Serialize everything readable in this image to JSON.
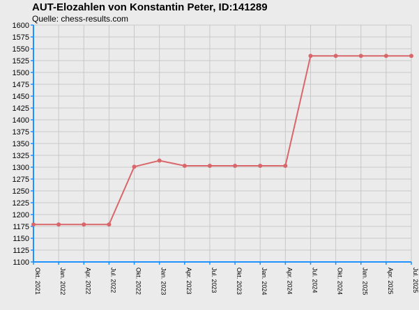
{
  "title": "AUT-Elozahlen von Konstantin Peter, ID:141289",
  "subtitle": "Quelle: chess-results.com",
  "colors": {
    "background": "#ebebeb",
    "grid": "#c8c8c8",
    "axis": "#1e90ff",
    "series": "#d9666a"
  },
  "chart_data": {
    "type": "line",
    "title": "AUT-Elozahlen von Konstantin Peter, ID:141289",
    "subtitle": "Quelle: chess-results.com",
    "xlabel": "",
    "ylabel": "",
    "ylim": [
      1100,
      1600
    ],
    "ystep": 25,
    "grid": true,
    "categories": [
      "Okt. 2021",
      "Jan. 2022",
      "Apr. 2022",
      "Jul. 2022",
      "Okt. 2022",
      "Jan. 2023",
      "Apr. 2023",
      "Jul. 2023",
      "Okt. 2023",
      "Jan. 2024",
      "Apr. 2024",
      "Jul. 2024",
      "Okt. 2024",
      "Jan. 2025",
      "Apr. 2025",
      "Jul. 2025"
    ],
    "series": [
      {
        "values": [
          1179,
          1179,
          1179,
          1179,
          1301,
          1314,
          1303,
          1303,
          1303,
          1303,
          1303,
          1535,
          1535,
          1535,
          1535,
          1535
        ]
      }
    ]
  }
}
